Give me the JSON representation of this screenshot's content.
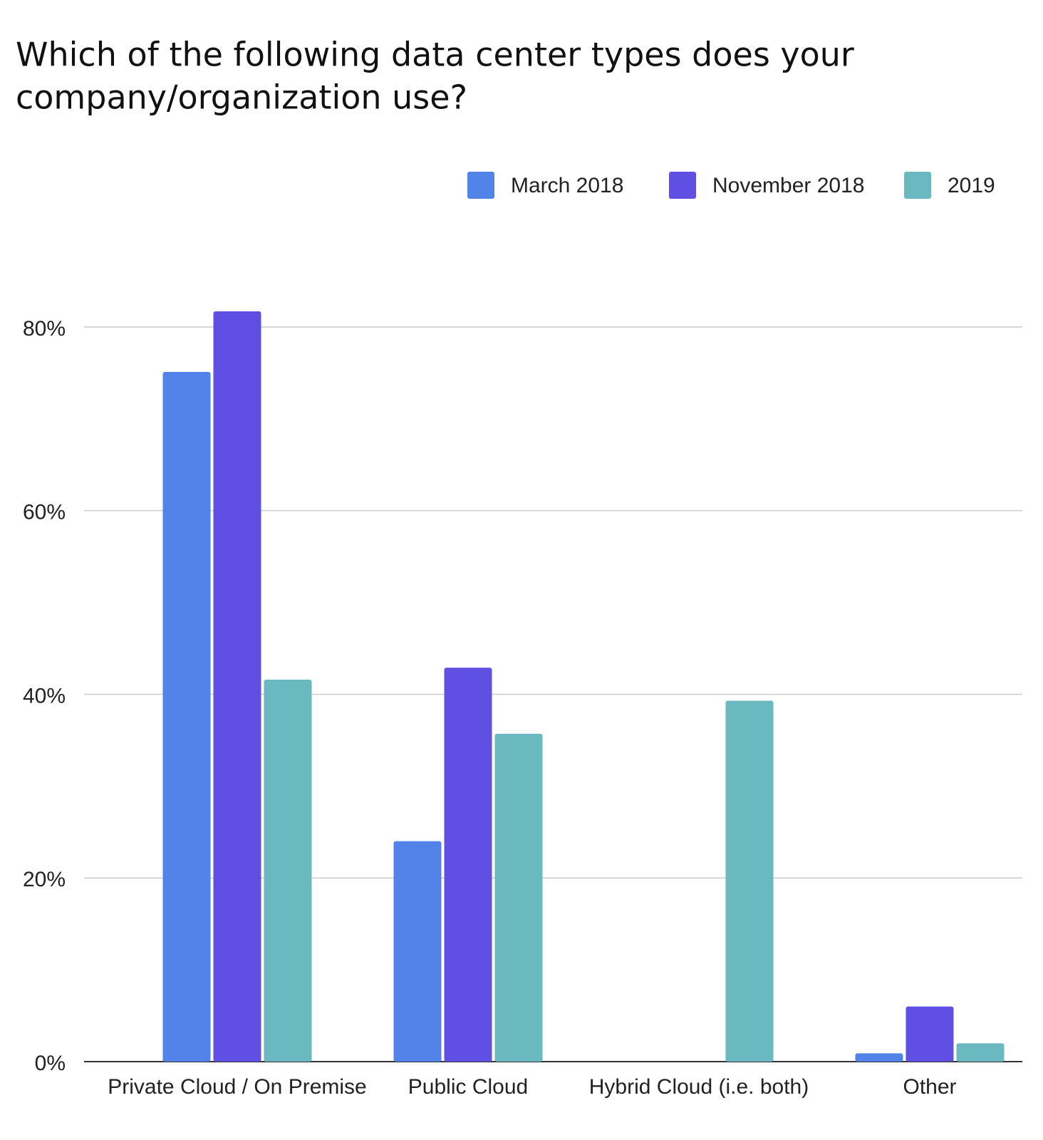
{
  "chart_data": {
    "type": "bar",
    "title_lines": [
      "Which of the following data center types does your",
      "company/organization use?"
    ],
    "categories": [
      "Private Cloud / On Premise",
      "Public Cloud",
      "Hybrid Cloud (i.e. both)",
      "Other"
    ],
    "series": [
      {
        "name": "March 2018",
        "color": "#5283e8",
        "values": [
          75.1,
          24,
          null,
          0.9
        ]
      },
      {
        "name": "November 2018",
        "color": "#5f4fe3",
        "values": [
          81.7,
          42.9,
          null,
          6
        ]
      },
      {
        "name": "2019",
        "color": "#6ab9c1",
        "values": [
          41.6,
          35.7,
          39.3,
          2
        ]
      }
    ],
    "ylim": [
      0,
      90
    ],
    "yticks": [
      {
        "value": 0,
        "label": "0%"
      },
      {
        "value": 20,
        "label": "20%"
      },
      {
        "value": 40,
        "label": "40%"
      },
      {
        "value": 60,
        "label": "60%"
      },
      {
        "value": 80,
        "label": "80%"
      }
    ],
    "grid": true,
    "legend": "top-right"
  }
}
